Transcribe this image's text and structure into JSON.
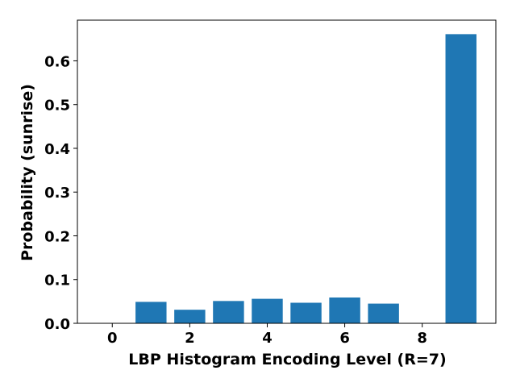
{
  "chart_data": {
    "type": "bar",
    "x": [
      0,
      1,
      2,
      3,
      4,
      5,
      6,
      7,
      8,
      9
    ],
    "values": [
      0.0,
      0.049,
      0.031,
      0.051,
      0.056,
      0.047,
      0.059,
      0.045,
      0.0,
      0.661
    ],
    "xlabel": "LBP Histogram Encoding Level (R=7)",
    "ylabel": "Probability (sunrise)",
    "xlim": [
      -0.9,
      9.9
    ],
    "ylim": [
      0,
      0.693
    ],
    "xticks": [
      0,
      2,
      4,
      6,
      8
    ],
    "yticks": [
      0.0,
      0.1,
      0.2,
      0.3,
      0.4,
      0.5,
      0.6
    ],
    "xtick_labels": [
      "0",
      "2",
      "4",
      "6",
      "8"
    ],
    "ytick_labels": [
      "0.0",
      "0.1",
      "0.2",
      "0.3",
      "0.4",
      "0.5",
      "0.6"
    ],
    "bar_width": 0.8,
    "bar_color": "#1f77b4",
    "grid": false,
    "legend": false
  }
}
